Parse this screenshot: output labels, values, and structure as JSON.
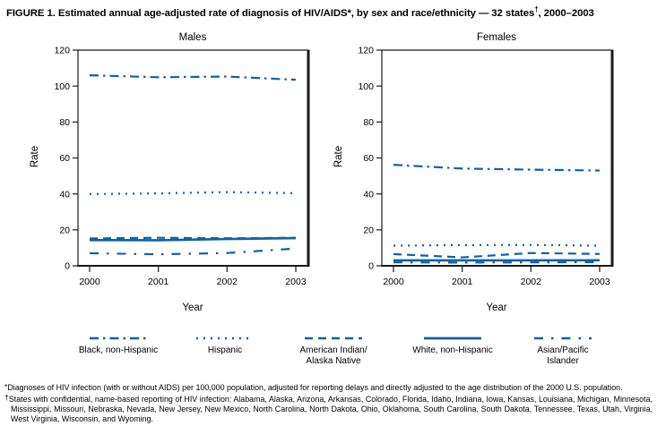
{
  "figure": {
    "title_main": "FIGURE 1. Estimated annual age-adjusted rate of diagnosis of HIV/AIDS*, by sex and race/ethnicity — 32 states",
    "title_sup": "†",
    "title_tail": ", 2000–2003"
  },
  "colors": {
    "line": "#1060a7",
    "axis": "#1a1a1a",
    "text": "#000000"
  },
  "chart_data": [
    {
      "type": "line",
      "title": "Males",
      "xlabel": "Year",
      "ylabel": "Rate",
      "x": [
        2000,
        2001,
        2002,
        2003
      ],
      "xticks": [
        "2000",
        "2001",
        "2002",
        "2003"
      ],
      "yticks": [
        0,
        20,
        40,
        60,
        80,
        100,
        120
      ],
      "ylim": [
        0,
        120
      ],
      "grid": false,
      "series": [
        {
          "name": "Black, non-Hispanic",
          "dash": "dash-dot",
          "values": [
            106,
            104.9,
            105.3,
            103.5
          ]
        },
        {
          "name": "Hispanic",
          "dash": "dotted",
          "values": [
            39.9,
            40.3,
            41,
            40.4
          ]
        },
        {
          "name": "American Indian/Alaska Native",
          "dash": "dashed",
          "values": [
            15.2,
            15.6,
            15.3,
            15.6
          ]
        },
        {
          "name": "White, non-Hispanic",
          "dash": "solid",
          "values": [
            14.3,
            14.2,
            14.9,
            15.4
          ]
        },
        {
          "name": "Asian/Pacific Islander",
          "dash": "long-dash-dot",
          "values": [
            7,
            6.4,
            7.1,
            9.6
          ]
        }
      ]
    },
    {
      "type": "line",
      "title": "Females",
      "xlabel": "Year",
      "ylabel": "Rate",
      "x": [
        2000,
        2001,
        2002,
        2003
      ],
      "xticks": [
        "2000",
        "2001",
        "2002",
        "2003"
      ],
      "yticks": [
        0,
        20,
        40,
        60,
        80,
        100,
        120
      ],
      "ylim": [
        0,
        120
      ],
      "grid": false,
      "series": [
        {
          "name": "Black, non-Hispanic",
          "dash": "dash-dot",
          "values": [
            56.2,
            54.1,
            53.5,
            53
          ]
        },
        {
          "name": "Hispanic",
          "dash": "dotted",
          "values": [
            11.2,
            11.5,
            11.6,
            11.2
          ]
        },
        {
          "name": "American Indian/Alaska Native",
          "dash": "dashed",
          "values": [
            6.5,
            4.7,
            7.1,
            6.6
          ]
        },
        {
          "name": "White, non-Hispanic",
          "dash": "solid",
          "values": [
            3,
            3,
            3,
            3.1
          ]
        },
        {
          "name": "Asian/Pacific Islander",
          "dash": "long-dash-dot",
          "values": [
            1.9,
            1.8,
            1.9,
            2
          ]
        }
      ]
    }
  ],
  "legend": {
    "items": [
      {
        "line1": "Black, non-Hispanic",
        "line2": "",
        "dash": "dash-dot"
      },
      {
        "line1": "Hispanic",
        "line2": "",
        "dash": "dotted"
      },
      {
        "line1": "American Indian/",
        "line2": "Alaska Native",
        "dash": "dashed"
      },
      {
        "line1": "White, non-Hispanic",
        "line2": "",
        "dash": "solid"
      },
      {
        "line1": "Asian/Pacific",
        "line2": "Islander",
        "dash": "long-dash-dot"
      }
    ]
  },
  "footnotes": [
    {
      "marker": "*",
      "text": "Diagnoses of HIV infection (with or without AIDS) per 100,000 population, adjusted for reporting delays and directly adjusted to the age distribution of the 2000 U.S. population."
    },
    {
      "marker": "†",
      "text": "States with confidential, name-based reporting of HIV infection: Alabama, Alaska, Arizona, Arkansas, Colorado, Florida, Idaho, Indiana, Iowa, Kansas, Louisiana, Michigan, Minnesota, Mississippi, Missouri, Nebraska, Nevada, New Jersey, New Mexico, North Carolina, North Dakota, Ohio, Oklahoma, South Carolina, South Dakota, Tennessee, Texas, Utah, Virginia, West Virginia, Wisconsin, and Wyoming."
    }
  ]
}
